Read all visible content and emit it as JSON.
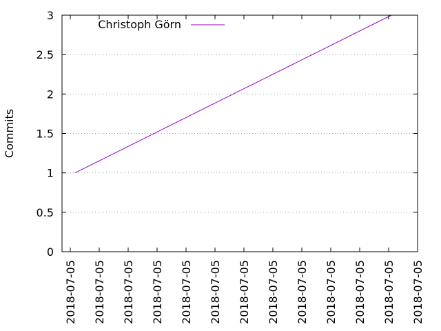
{
  "chart_data": {
    "type": "line",
    "ylabel": "Commits",
    "xlabel": "",
    "ylim": [
      0,
      3
    ],
    "y_ticks": [
      "0",
      "0.5",
      "1",
      "1.5",
      "2",
      "2.5",
      "3"
    ],
    "x_tick_labels": [
      "2018-07-05",
      "2018-07-05",
      "2018-07-05",
      "2018-07-05",
      "2018-07-05",
      "2018-07-05",
      "2018-07-05",
      "2018-07-05",
      "2018-07-05",
      "2018-07-05",
      "2018-07-05",
      "2018-07-05",
      "2018-07-05"
    ],
    "grid": "horizontal dotted",
    "legend_position": "top-left",
    "series": [
      {
        "name": "Christoph Görn",
        "color": "#9400d3",
        "points": [
          {
            "x": "2018-07-05",
            "y": 1
          },
          {
            "x": "2018-07-05",
            "y": 2
          },
          {
            "x": "2018-07-05",
            "y": 3
          }
        ]
      }
    ]
  }
}
